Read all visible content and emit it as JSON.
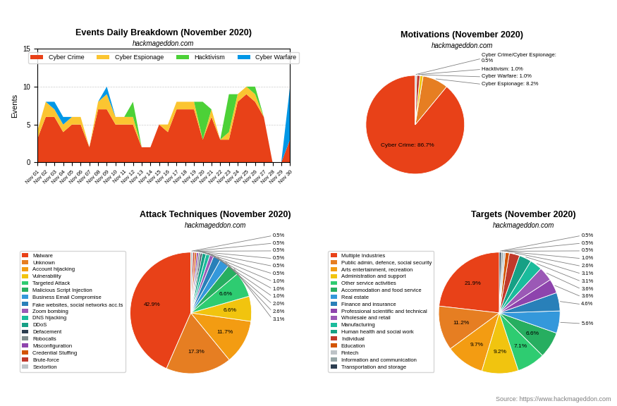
{
  "chart_data": [
    {
      "type": "area",
      "stacked": true,
      "title": "Events Daily Breakdown (November 2020)",
      "subtitle": "hackmageddon.com",
      "categories": [
        "Nov 01",
        "Nov 02",
        "Nov 03",
        "Nov 04",
        "Nov 05",
        "Nov 06",
        "Nov 07",
        "Nov 08",
        "Nov 09",
        "Nov 10",
        "Nov 11",
        "Nov 12",
        "Nov 13",
        "Nov 14",
        "Nov 15",
        "Nov 16",
        "Nov 17",
        "Nov 18",
        "Nov 19",
        "Nov 20",
        "Nov 21",
        "Nov 22",
        "Nov 23",
        "Nov 24",
        "Nov 25",
        "Nov 26",
        "Nov 27",
        "Nov 28",
        "Nov 29",
        "Nov 30"
      ],
      "series": [
        {
          "name": "Cyber Crime",
          "color": "#e84118",
          "values": [
            3,
            6,
            6,
            4,
            5,
            5,
            2,
            7,
            7,
            5,
            5,
            5,
            2,
            2,
            5,
            4,
            7,
            7,
            7,
            3,
            6,
            3,
            3,
            8,
            9,
            8,
            6,
            0,
            0,
            3
          ]
        },
        {
          "name": "Cyber Espionage",
          "color": "#fbc531",
          "values": [
            1,
            2,
            1,
            1,
            1,
            1,
            0,
            1,
            2,
            1,
            1,
            1,
            0,
            0,
            0,
            1,
            1,
            1,
            1,
            0,
            1,
            0,
            1,
            1,
            1,
            1,
            0,
            0,
            0,
            0
          ]
        },
        {
          "name": "Hacktivism",
          "color": "#4cd137",
          "values": [
            0,
            0,
            0,
            0,
            0,
            0,
            0,
            0,
            0,
            0,
            0,
            2,
            0,
            0,
            0,
            0,
            0,
            0,
            0,
            5,
            0,
            0,
            5,
            0,
            0,
            1,
            0,
            0,
            0,
            0
          ]
        },
        {
          "name": "Cyber Warfare",
          "color": "#0097e6",
          "values": [
            0,
            0,
            1,
            1,
            0,
            0,
            0,
            0,
            1,
            0,
            0,
            0,
            0,
            0,
            0,
            0,
            0,
            0,
            0,
            0,
            0,
            0,
            0,
            0,
            0,
            0,
            0,
            0,
            0,
            7
          ]
        }
      ],
      "y_label": "Events",
      "ylim": [
        0,
        15
      ],
      "yticks": [
        0,
        5,
        10,
        15
      ],
      "grid": "y",
      "legend": "upper center"
    },
    {
      "type": "pie",
      "title": "Motivations (November 2020)",
      "subtitle": "hackmageddon.com",
      "values": [
        86.7,
        8.2,
        1.0,
        1.0,
        0.5
      ],
      "value_labels": [
        "Cyber Crime: 86.7%",
        "Cyber Espionage: 8.2%",
        "Cyber Warfare: 1.0%",
        "Hacktivism: 1.0%",
        "Cyber Crime/Cyber Espionage:\n0.5%"
      ],
      "colors": [
        "#e84118",
        "#e67e22",
        "#f1c40f",
        "#c0392b",
        "#bdc3c7"
      ],
      "data_labels": true
    },
    {
      "type": "pie",
      "title": "Attack Techniques (November 2020)",
      "subtitle": "hackmageddon.com",
      "categories": [
        "Malware",
        "Unknown",
        "Account hijacking",
        "Vulnerability",
        "Targeted Attack",
        "Malicious Script Injection",
        "Business Email Compromise",
        "Fake websites, social networks acc.ts",
        "Zoom bombing",
        "DNS hijacking",
        "DDoS",
        "Defacement",
        "Robocalls",
        "Misconfiguration",
        "Credential Stuffing",
        "Brute-force",
        "Sextortion"
      ],
      "values": [
        42.9,
        17.3,
        11.7,
        6.6,
        6.6,
        3.1,
        2.6,
        2.0,
        1.0,
        1.0,
        1.0,
        0.5,
        0.5,
        0.5,
        0.5,
        0.5,
        0.5
      ],
      "value_labels": [
        "42.9%",
        "17.3%",
        "11.7%",
        "6.6%",
        "6.6%",
        "3.1%",
        "2.6%",
        "2.0%",
        "1.0%",
        "1.0%",
        "1.0%",
        "0.5%",
        "0.5%",
        "0.5%",
        "0.5%",
        "0.5%",
        "0.5%"
      ],
      "colors": [
        "#e84118",
        "#e67e22",
        "#f39c12",
        "#f1c40f",
        "#2ecc71",
        "#27ae60",
        "#3498db",
        "#2980b9",
        "#9b59b6",
        "#1abc9c",
        "#16a085",
        "#2c3e50",
        "#7f8c8d",
        "#8e44ad",
        "#d35400",
        "#c0392b",
        "#bdc3c7"
      ],
      "data_labels": true,
      "legend": "center right"
    },
    {
      "type": "pie",
      "title": "Targets (November 2020)",
      "subtitle": "hackmageddon.com",
      "categories": [
        "Multiple Industries",
        "Public admin, defence, social security",
        "Arts entertainment, recreation",
        "Administration and support",
        "Other service activities",
        "Accommodation and food service",
        "Real estate",
        "Finance and insurance",
        "Professional scientific and technical",
        "Wholesale and retail",
        "Manufacturing",
        "Human health and social work",
        "Individual",
        "Education",
        "Fintech",
        "Information and communication",
        "Transportation and storage"
      ],
      "values": [
        21.9,
        11.2,
        9.7,
        9.2,
        7.1,
        6.6,
        5.6,
        4.6,
        3.6,
        3.6,
        3.1,
        3.1,
        2.6,
        1.0,
        0.5,
        0.5,
        0.5
      ],
      "value_labels": [
        "21.9%",
        "11.2%",
        "9.7%",
        "9.2%",
        "7.1%",
        "6.6%",
        "5.6%",
        "4.6%",
        "3.6%",
        "3.6%",
        "3.1%",
        "3.1%",
        "2.6%",
        "1.0%",
        "0.5%",
        "0.5%",
        "0.5%"
      ],
      "colors": [
        "#e84118",
        "#e67e22",
        "#f39c12",
        "#f1c40f",
        "#2ecc71",
        "#27ae60",
        "#3498db",
        "#2980b9",
        "#8e44ad",
        "#9b59b6",
        "#1abc9c",
        "#16a085",
        "#c0392b",
        "#d35400",
        "#bdc3c7",
        "#95a5a6",
        "#2c3e50"
      ],
      "data_labels": true,
      "legend": "center right"
    }
  ],
  "footer": "Source: https://www.hackmageddon.com"
}
